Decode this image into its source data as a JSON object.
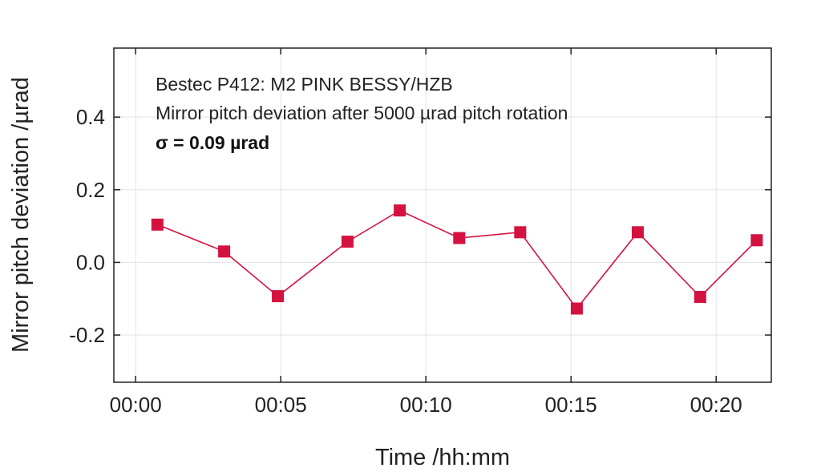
{
  "chart_data": {
    "type": "line",
    "xlabel": "Time /hh:mm",
    "ylabel": "Mirror pitch deviation /µrad",
    "x_ticks": [
      "00:00",
      "00:05",
      "00:10",
      "00:15",
      "00:20"
    ],
    "x_tick_minutes": [
      0,
      5,
      10,
      15,
      20
    ],
    "y_ticks": [
      "-0.2",
      "0.0",
      "0.2",
      "0.4"
    ],
    "y_tick_values": [
      -0.2,
      0.0,
      0.2,
      0.4
    ],
    "xlim_minutes": [
      -0.75,
      21.9
    ],
    "ylim": [
      -0.33,
      0.59
    ],
    "grid": true,
    "annotations": [
      "Bestec P412: M2 PINK BESSY/HZB",
      "Mirror pitch deviation after 5000 µrad pitch rotation",
      "σ = 0.09 µrad"
    ],
    "series": [
      {
        "color": "#d4123f",
        "marker": "square",
        "x_minutes": [
          0.75,
          3.05,
          4.9,
          7.3,
          9.1,
          11.15,
          13.25,
          15.2,
          17.3,
          19.45,
          21.4
        ],
        "y": [
          0.104,
          0.03,
          -0.093,
          0.057,
          0.143,
          0.067,
          0.083,
          -0.127,
          0.083,
          -0.095,
          0.061
        ]
      }
    ]
  }
}
